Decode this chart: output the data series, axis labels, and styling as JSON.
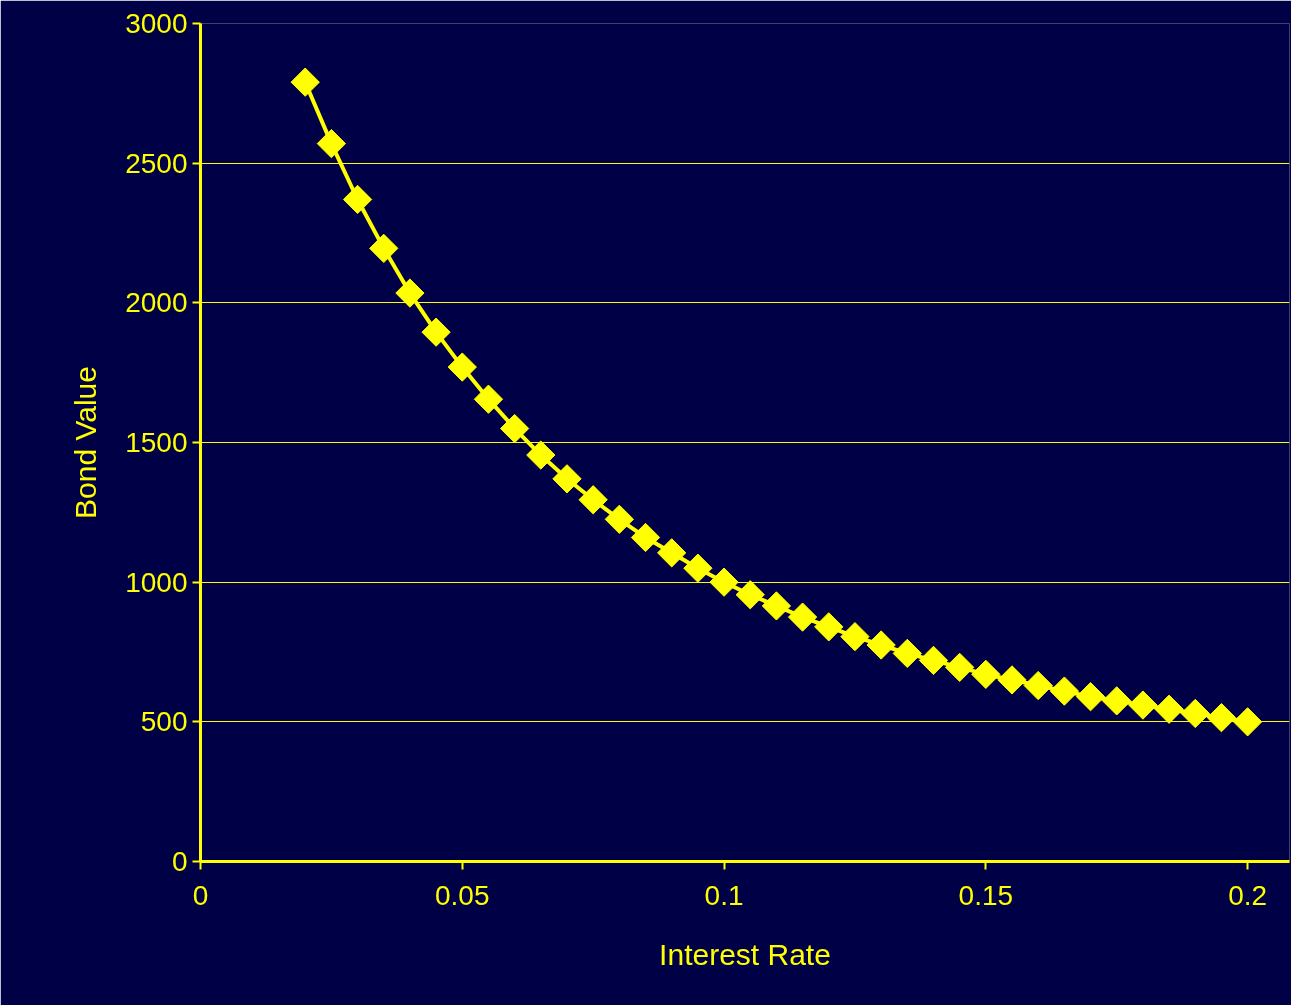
{
  "chart_data": {
    "type": "line",
    "xlabel": "Interest Rate",
    "ylabel": "Bond Value",
    "x": [
      0.02,
      0.025,
      0.03,
      0.035,
      0.04,
      0.045,
      0.05,
      0.055,
      0.06,
      0.065,
      0.07,
      0.075,
      0.08,
      0.085,
      0.09,
      0.095,
      0.1,
      0.105,
      0.11,
      0.115,
      0.12,
      0.125,
      0.13,
      0.135,
      0.14,
      0.145,
      0.15,
      0.155,
      0.16,
      0.165,
      0.17,
      0.175,
      0.18,
      0.185,
      0.19,
      0.195,
      0.2
    ],
    "series": [
      {
        "color": "#ffff00",
        "values": [
          2790,
          2570,
          2370,
          2195,
          2035,
          1895,
          1770,
          1655,
          1550,
          1455,
          1370,
          1295,
          1225,
          1160,
          1105,
          1050,
          1000,
          955,
          915,
          875,
          840,
          805,
          775,
          745,
          720,
          695,
          670,
          650,
          630,
          610,
          590,
          575,
          560,
          545,
          530,
          515,
          500
        ]
      }
    ],
    "xlim": [
      0,
      0.208
    ],
    "ylim": [
      0,
      3000
    ],
    "xticks": [
      0,
      0.05,
      0.1,
      0.15,
      0.2
    ],
    "yticks": [
      0,
      500,
      1000,
      1500,
      2000,
      2500,
      3000
    ],
    "grid": "y",
    "marker": "diamond",
    "line_style": "solid"
  }
}
